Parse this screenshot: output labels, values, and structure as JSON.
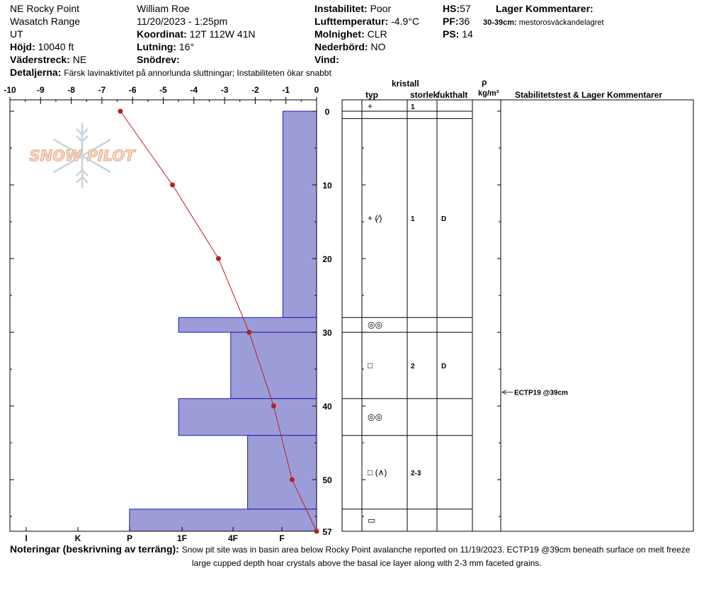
{
  "header": {
    "location": "NE Rocky Point",
    "range": "Wasatch Range",
    "state": "UT",
    "elevation_label": "Höjd:",
    "elevation_value": "10040 ft",
    "aspect_label": "Väderstreck:",
    "aspect_value": "NE",
    "observer": "William  Roe",
    "datetime": "11/20/2023 - 1:25pm",
    "coord_label": "Koordinat:",
    "coord_value": "12T 112W 41N",
    "slope_label": "Lutning:",
    "slope_value": "16°",
    "wind_loading_label": "Snödrev:",
    "wind_loading_value": "",
    "instability_label": "Instabilitet:",
    "instability_value": "Poor",
    "air_temp_label": "Lufttemperatur:",
    "air_temp_value": "-4.9°C",
    "sky_label": "Molnighet:",
    "sky_value": "CLR",
    "precip_label": "Nederbörd:",
    "precip_value": "NO",
    "wind_label": "Vind:",
    "wind_value": "",
    "hs_label": "HS:",
    "hs_value": "57",
    "pf_label": "PF:",
    "pf_value": "36",
    "ps_label": "PS:",
    "ps_value": "14",
    "layer_comments_label": "Lager Kommentarer:",
    "layer_comment_range": "30-39cm:",
    "layer_comment_text": "mestorosväckandelagret",
    "details_label": "Detaljerna:",
    "details_text": "Färsk lavinaktivitet på annorlunda sluttningar; Instabiliteten ökar snabbt"
  },
  "table_headers": {
    "crystal": "kristall",
    "type": "typ",
    "size": "storlek",
    "moisture": "fukthalt",
    "density_symbol": "ρ",
    "density_unit": "kg/m³",
    "stability": "Stabilitetstest & Lager Kommentarer"
  },
  "notes": {
    "label": "Noteringar (beskrivning av terräng):",
    "line1": "Snow pit site was in basin area below Rocky Point avalanche reported on 11/19/2023. ECTP19 @39cm beneath surface on melt freeze",
    "line2": "large cupped depth hoar crystals above the basal ice layer along with 2-3 mm faceted grains."
  },
  "logo": {
    "text": "SNOW PILOT"
  },
  "chart_data": {
    "type": "line",
    "temp_axis": {
      "min": -10,
      "max": 0,
      "ticks": [
        "-10",
        "-9",
        "-8",
        "-7",
        "-6",
        "-5",
        "-4",
        "-3",
        "-2",
        "-1",
        "0"
      ]
    },
    "depth_axis": {
      "min": 0,
      "max": 57,
      "ticks": [
        "0",
        "10",
        "20",
        "30",
        "40",
        "50",
        "57"
      ]
    },
    "hardness_axis": {
      "ticks": [
        "I",
        "K",
        "P",
        "1F",
        "4F",
        "F"
      ]
    },
    "temperature_profile": [
      {
        "depth": 0,
        "temp": -6.4
      },
      {
        "depth": 10,
        "temp": -4.7
      },
      {
        "depth": 20,
        "temp": -3.2
      },
      {
        "depth": 30,
        "temp": -2.2
      },
      {
        "depth": 40,
        "temp": -1.4
      },
      {
        "depth": 50,
        "temp": -0.8
      },
      {
        "depth": 57,
        "temp": 0
      }
    ],
    "hardness_profile": [
      {
        "top": 0,
        "bottom": 28,
        "hardness_temp_equiv": -1.1
      },
      {
        "top": 28,
        "bottom": 30,
        "hardness_temp_equiv": -4.5
      },
      {
        "top": 30,
        "bottom": 39,
        "hardness_temp_equiv": -2.8
      },
      {
        "top": 39,
        "bottom": 44,
        "hardness_temp_equiv": -4.5
      },
      {
        "top": 44,
        "bottom": 54,
        "hardness_temp_equiv": -2.25
      },
      {
        "top": 54,
        "bottom": 57,
        "hardness_temp_equiv": -6.1
      }
    ],
    "layers": [
      {
        "top": 0,
        "bottom": 1,
        "type": "+",
        "size": "1",
        "moisture": ""
      },
      {
        "top": 1,
        "bottom": 28,
        "type": "+ (⁄)",
        "size": "1",
        "moisture": "D"
      },
      {
        "top": 28,
        "bottom": 30,
        "type": "◎◎",
        "size": "",
        "moisture": ""
      },
      {
        "top": 30,
        "bottom": 39,
        "type": "□",
        "size": "2",
        "moisture": "D"
      },
      {
        "top": 39,
        "bottom": 44,
        "type": "◎◎",
        "size": "",
        "moisture": ""
      },
      {
        "top": 44,
        "bottom": 54,
        "type": "□ (∧)",
        "size": "2-3",
        "moisture": ""
      },
      {
        "top": 54,
        "bottom": 57,
        "type": "▭",
        "size": "",
        "moisture": ""
      }
    ],
    "stability_tests": [
      {
        "depth": 39,
        "label": "ECTP19 @39cm"
      }
    ]
  }
}
